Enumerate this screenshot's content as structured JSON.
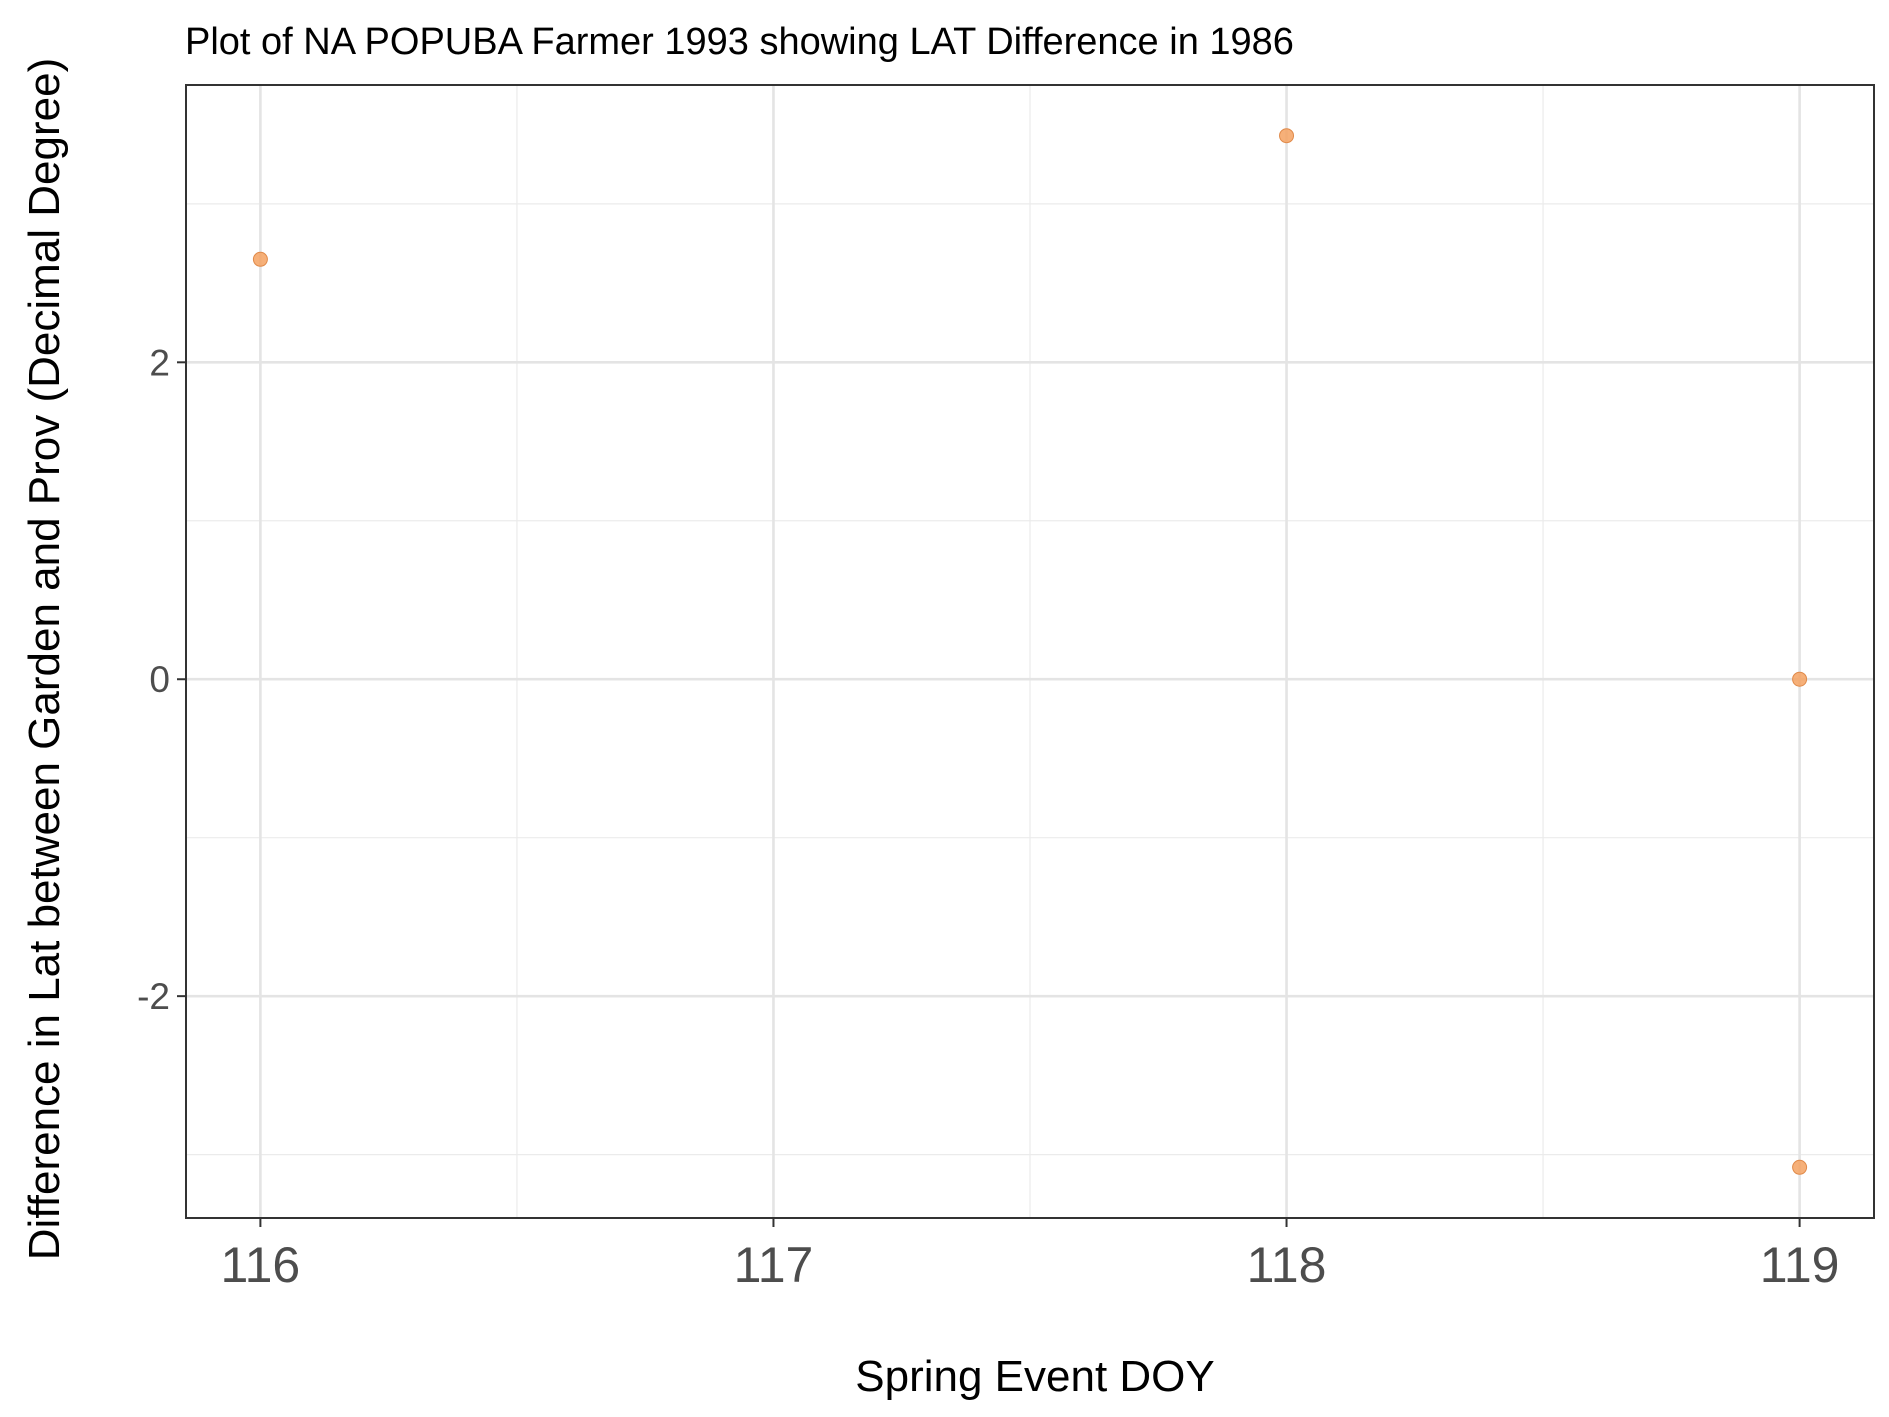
{
  "chart_data": {
    "type": "scatter",
    "title": "Plot of NA POPUBA Farmer 1993 showing LAT Difference in 1986",
    "xlabel": "Spring Event DOY",
    "ylabel": "Difference in Lat between Garden and Prov (Decimal Degree)",
    "xlim": [
      115.855,
      119.145
    ],
    "ylim": [
      -3.4,
      3.75
    ],
    "x_ticks": [
      116,
      117,
      118,
      119
    ],
    "x_tick_labels": [
      "116",
      "117",
      "118",
      "119"
    ],
    "y_ticks": [
      -2,
      0,
      2
    ],
    "y_tick_labels": [
      "-2",
      "0",
      "2"
    ],
    "grid": true,
    "legend": "none",
    "point_color": "#f4a261",
    "points": [
      {
        "x": 116,
        "y": 2.65
      },
      {
        "x": 118,
        "y": 3.43
      },
      {
        "x": 119,
        "y": 0.0
      },
      {
        "x": 119,
        "y": -3.08
      }
    ]
  }
}
